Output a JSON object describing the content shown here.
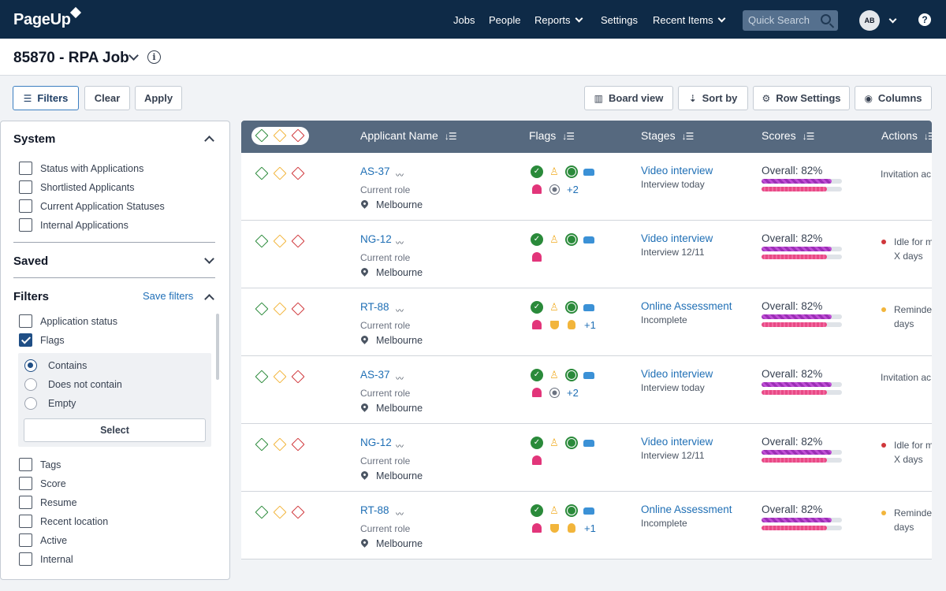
{
  "nav": {
    "logo": "PageUp",
    "links": [
      "Jobs",
      "People",
      "Reports",
      "Settings",
      "Recent Items"
    ],
    "quick_search_placeholder": "Quick Search",
    "avatar_initials": "AB",
    "help": "?"
  },
  "page": {
    "title": "85870 - RPA Job",
    "info": "i"
  },
  "toolbar": {
    "filters": "Filters",
    "clear": "Clear",
    "apply": "Apply",
    "board_view": "Board view",
    "sort_by": "Sort by",
    "row_settings": "Row Settings",
    "columns": "Columns"
  },
  "sidebar": {
    "system_title": "System",
    "system_items": [
      "Status with Applications",
      "Shortlisted Applicants",
      "Current Application Statuses",
      "Internal Applications"
    ],
    "saved_title": "Saved",
    "filters_title": "Filters",
    "save_filters": "Save filters",
    "filter_items": [
      "Application status",
      "Flags"
    ],
    "flag_options": [
      "Contains",
      "Does not contain",
      "Empty"
    ],
    "select_label": "Select",
    "more_items": [
      "Tags",
      "Score",
      "Resume",
      "Recent location",
      "Active",
      "Internal"
    ]
  },
  "table": {
    "columns": [
      "Applicant Name",
      "Flags",
      "Stages",
      "Scores",
      "Actions"
    ],
    "sort_glyph": "↓☰",
    "rows": [
      {
        "name": "AS-37",
        "role": "Current role",
        "location": "Melbourne",
        "more": "+2",
        "stage": "Video interview",
        "stage_sub": "Interview today",
        "score": "Overall: 82%",
        "action": "Invitation ac",
        "action2": "",
        "dot": "",
        "second_flags": [
          "bell",
          "target"
        ]
      },
      {
        "name": "NG-12",
        "role": "Current role",
        "location": "Melbourne",
        "more": "",
        "stage": "Video interview",
        "stage_sub": "Interview 12/11",
        "score": "Overall: 82%",
        "action": "Idle for m",
        "action2": "X days",
        "dot": "red",
        "second_flags": [
          "bell"
        ]
      },
      {
        "name": "RT-88",
        "role": "Current role",
        "location": "Melbourne",
        "more": "+1",
        "stage": "Online Assessment",
        "stage_sub": "Incomplete",
        "score": "Overall: 82%",
        "action": "Reminde",
        "action2": "days",
        "dot": "amber",
        "second_flags": [
          "bell",
          "trophy",
          "bulb"
        ]
      },
      {
        "name": "AS-37",
        "role": "Current role",
        "location": "Melbourne",
        "more": "+2",
        "stage": "Video interview",
        "stage_sub": "Interview today",
        "score": "Overall: 82%",
        "action": "Invitation ac",
        "action2": "",
        "dot": "",
        "second_flags": [
          "bell",
          "target"
        ]
      },
      {
        "name": "NG-12",
        "role": "Current role",
        "location": "Melbourne",
        "more": "",
        "stage": "Video interview",
        "stage_sub": "Interview 12/11",
        "score": "Overall: 82%",
        "action": "Idle for m",
        "action2": "X days",
        "dot": "red",
        "second_flags": [
          "bell"
        ]
      },
      {
        "name": "RT-88",
        "role": "Current role",
        "location": "Melbourne",
        "more": "+1",
        "stage": "Online Assessment",
        "stage_sub": "Incomplete",
        "score": "Overall: 82%",
        "action": "Reminde",
        "action2": "days",
        "dot": "amber",
        "second_flags": [
          "bell",
          "trophy",
          "bulb"
        ]
      }
    ],
    "score_levels": {
      "purple": 0.87,
      "pink": 0.81
    }
  },
  "colors": {
    "nav_bg": "#0e2a47",
    "link": "#1f6fb5",
    "header_bg": "#56697f",
    "green": "#2a8a3a",
    "amber": "#f2b53b",
    "red": "#d0373b"
  }
}
